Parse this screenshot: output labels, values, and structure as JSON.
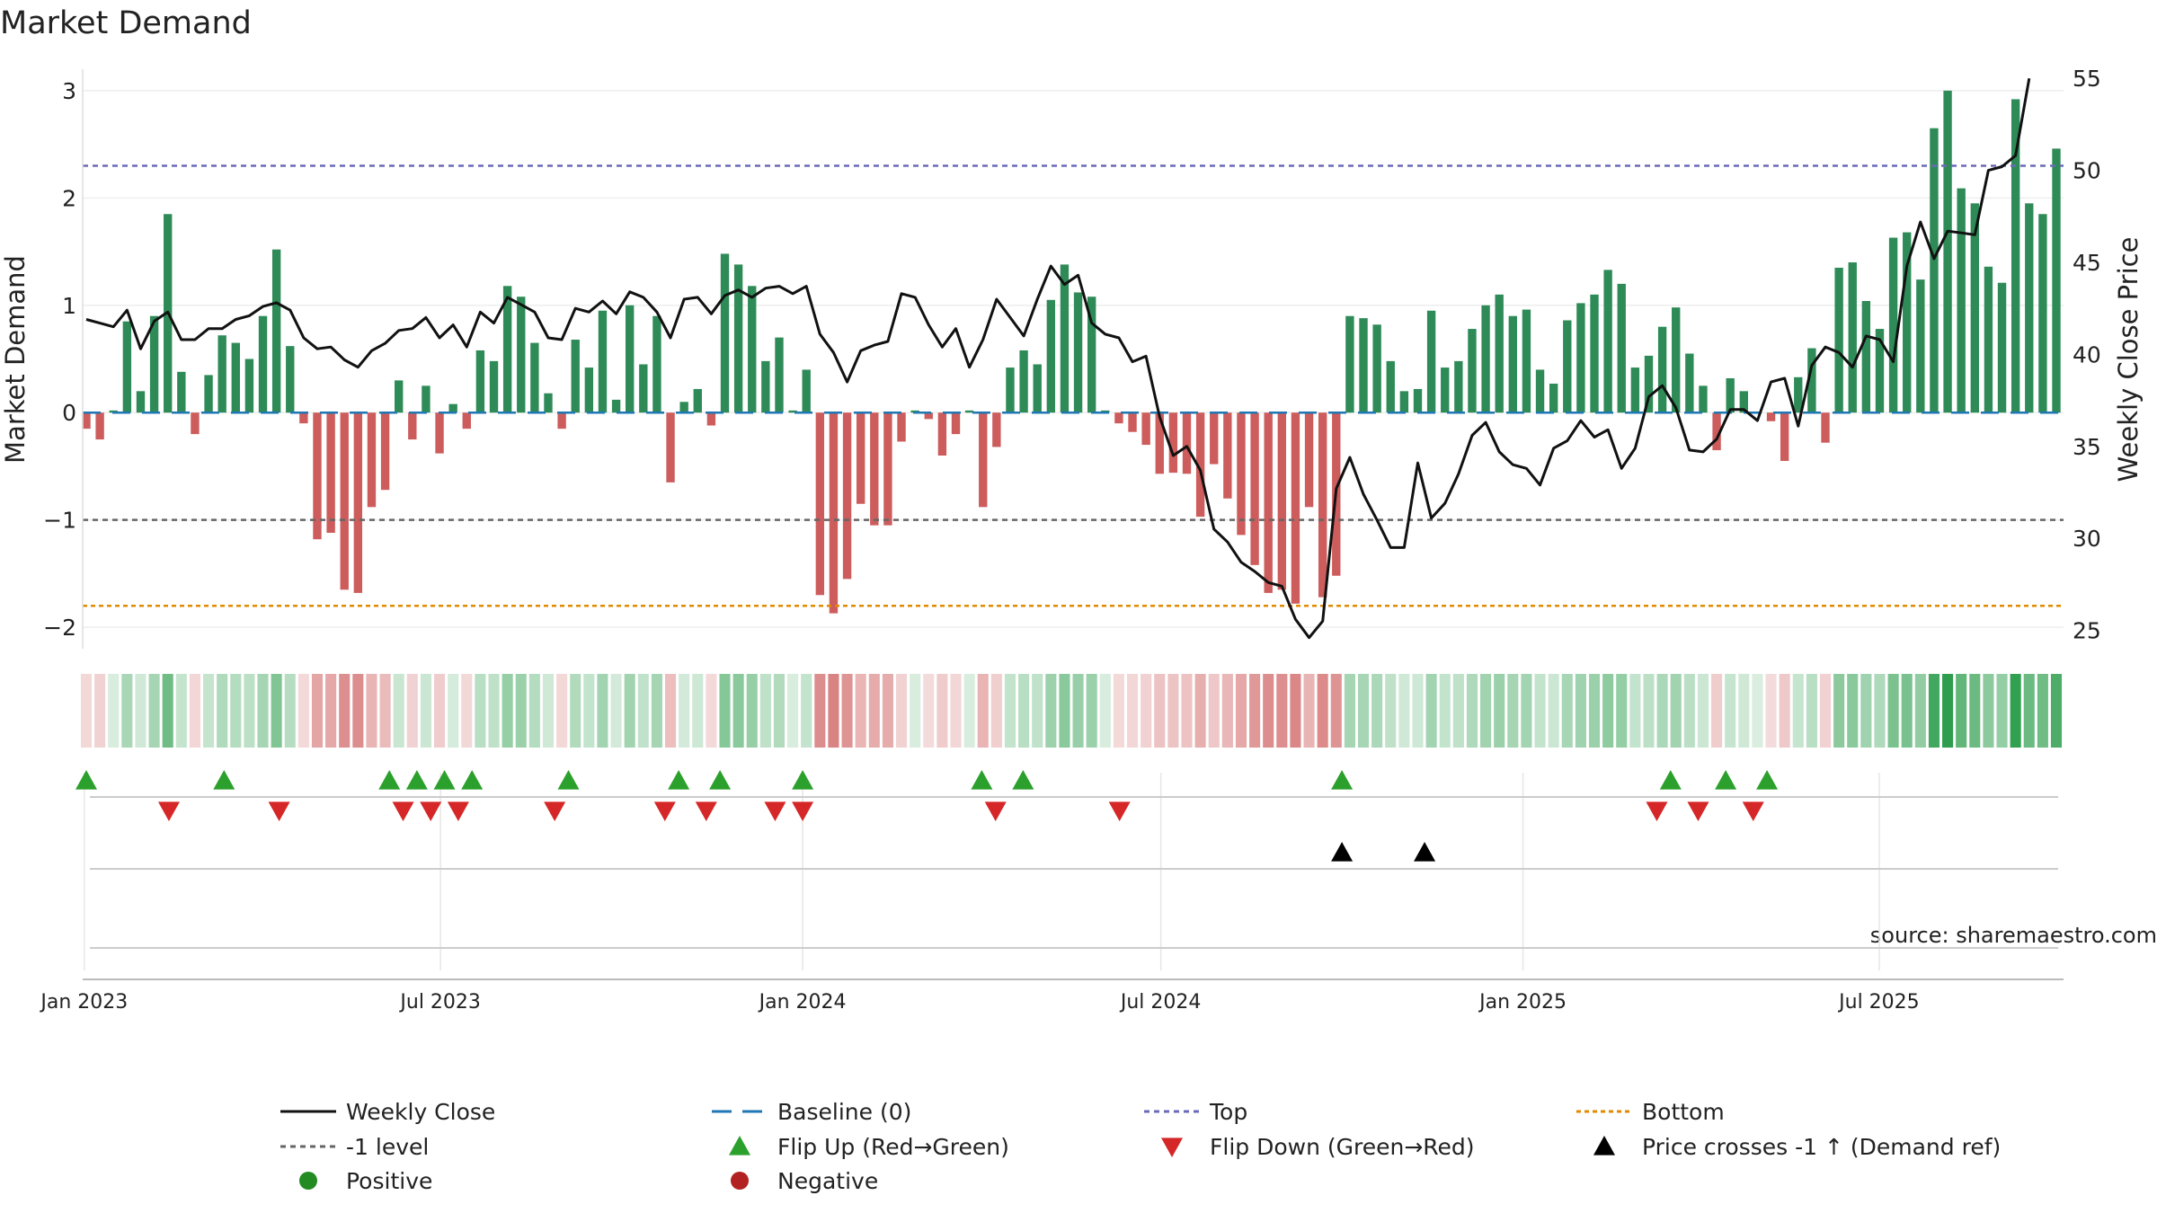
{
  "chart_data": {
    "type": "bar",
    "title": "Market Demand",
    "ylabel_left": "Market Demand",
    "ylabel_right": "Weekly Close Price",
    "source": "source: sharemaestro.com",
    "x_start": "2023-01-02",
    "x_end": "2025-09-29",
    "x_ticks": [
      {
        "date": "2023-01-01",
        "label": "Jan 2023"
      },
      {
        "date": "2023-07-01",
        "label": "Jul 2023"
      },
      {
        "date": "2024-01-01",
        "label": "Jan 2024"
      },
      {
        "date": "2024-07-01",
        "label": "Jul 2024"
      },
      {
        "date": "2025-01-01",
        "label": "Jan 2025"
      },
      {
        "date": "2025-07-01",
        "label": "Jul 2025"
      }
    ],
    "ylim_left": [
      -2.2,
      3.2
    ],
    "yticks_left": [
      -2,
      -1,
      0,
      1,
      2,
      3
    ],
    "ylim_right": [
      24,
      55.5
    ],
    "yticks_right": [
      25,
      30,
      35,
      40,
      45,
      50,
      55
    ],
    "levels": {
      "top": 2.3,
      "minus_one": -1.0,
      "bottom": -1.8
    },
    "demand": [
      -0.15,
      -0.25,
      0.02,
      0.85,
      0.2,
      0.9,
      1.85,
      0.38,
      -0.2,
      0.35,
      0.72,
      0.65,
      0.5,
      0.9,
      1.52,
      0.62,
      -0.1,
      -1.18,
      -1.12,
      -1.65,
      -1.68,
      -0.88,
      -0.72,
      0.3,
      -0.25,
      0.25,
      -0.38,
      0.08,
      -0.15,
      0.58,
      0.48,
      1.18,
      1.08,
      0.65,
      0.18,
      -0.15,
      0.68,
      0.42,
      0.95,
      0.12,
      1.0,
      0.45,
      0.9,
      -0.65,
      0.1,
      0.22,
      -0.12,
      1.48,
      1.38,
      1.18,
      0.48,
      0.7,
      0.02,
      0.4,
      -1.7,
      -1.87,
      -1.55,
      -0.85,
      -1.05,
      -1.05,
      -0.27,
      0.02,
      -0.06,
      -0.4,
      -0.2,
      0.02,
      -0.88,
      -0.32,
      0.42,
      0.58,
      0.45,
      1.05,
      1.38,
      1.12,
      1.08,
      0.02,
      -0.1,
      -0.18,
      -0.3,
      -0.57,
      -0.56,
      -0.57,
      -0.97,
      -0.48,
      -0.8,
      -1.14,
      -1.42,
      -1.68,
      -1.65,
      -1.78,
      -0.88,
      -1.72,
      -1.52,
      0.9,
      0.88,
      0.82,
      0.48,
      0.2,
      0.22,
      0.95,
      0.42,
      0.48,
      0.78,
      1.0,
      1.1,
      0.9,
      0.96,
      0.4,
      0.27,
      0.86,
      1.02,
      1.1,
      1.33,
      1.2,
      0.42,
      0.53,
      0.8,
      0.98,
      0.55,
      0.25,
      -0.35,
      0.32,
      0.2,
      0.0,
      -0.08,
      -0.45,
      0.33,
      0.6,
      -0.28,
      1.35,
      1.4,
      1.04,
      0.78,
      1.63,
      1.68,
      1.24,
      2.65,
      3.0,
      2.09,
      1.95,
      1.36,
      1.21,
      2.92,
      1.95,
      1.85,
      2.46
    ],
    "weekly_close": [
      41.9,
      41.7,
      41.5,
      42.4,
      40.3,
      41.8,
      42.3,
      40.8,
      40.8,
      41.4,
      41.4,
      41.9,
      42.1,
      42.6,
      42.8,
      42.4,
      40.9,
      40.3,
      40.4,
      39.7,
      39.3,
      40.2,
      40.6,
      41.3,
      41.4,
      42.0,
      40.9,
      41.6,
      40.4,
      42.3,
      41.7,
      43.1,
      42.7,
      42.3,
      40.9,
      40.8,
      42.5,
      42.3,
      42.9,
      42.2,
      43.4,
      43.1,
      42.3,
      40.9,
      43.0,
      43.1,
      42.2,
      43.2,
      43.5,
      43.1,
      43.6,
      43.7,
      43.3,
      43.7,
      41.1,
      40.1,
      38.5,
      40.2,
      40.5,
      40.7,
      43.3,
      43.1,
      41.6,
      40.4,
      41.4,
      39.3,
      40.8,
      43.0,
      42.0,
      41.0,
      43.0,
      44.8,
      43.8,
      44.3,
      41.7,
      41.1,
      40.9,
      39.6,
      39.9,
      36.6,
      34.5,
      35.0,
      33.7,
      30.5,
      29.8,
      28.7,
      28.2,
      27.6,
      27.4,
      25.6,
      24.6,
      25.5,
      32.7,
      34.4,
      32.4,
      31.0,
      29.5,
      29.5,
      34.1,
      31.1,
      31.9,
      33.5,
      35.6,
      36.3,
      34.7,
      34.0,
      33.8,
      32.9,
      34.9,
      35.3,
      36.4,
      35.5,
      35.9,
      33.8,
      34.9,
      37.7,
      38.3,
      37.1,
      34.8,
      34.7,
      35.4,
      37.0,
      37.0,
      36.4,
      38.5,
      38.7,
      36.1,
      39.4,
      40.4,
      40.1,
      39.3,
      41.0,
      40.8,
      39.6,
      44.8,
      47.2,
      45.2,
      46.7,
      46.6,
      46.5,
      50.0,
      50.2,
      50.8,
      55.0
    ],
    "flip_up": [
      "2023-01-02",
      "2023-03-13",
      "2023-06-05",
      "2023-06-19",
      "2023-07-03",
      "2023-07-17",
      "2023-09-04",
      "2023-10-30",
      "2023-11-20",
      "2024-01-01",
      "2024-04-01",
      "2024-04-22",
      "2024-10-01",
      "2025-03-17",
      "2025-04-14",
      "2025-05-05"
    ],
    "flip_down": [
      "2023-02-13",
      "2023-04-10",
      "2023-06-12",
      "2023-06-26",
      "2023-07-10",
      "2023-08-28",
      "2023-10-23",
      "2023-11-13",
      "2023-12-18",
      "2024-01-01",
      "2024-04-08",
      "2024-06-10",
      "2025-03-10",
      "2025-03-31",
      "2025-04-28"
    ],
    "price_cross_up": [
      "2024-10-01",
      "2024-11-12"
    ],
    "legend": [
      {
        "label": "Weekly Close",
        "kind": "line",
        "color": "#111111",
        "dash": ""
      },
      {
        "label": "Baseline (0)",
        "kind": "line",
        "color": "#1f77b4",
        "dash": "22 12"
      },
      {
        "label": "Top",
        "kind": "line",
        "color": "#6a6ab8",
        "dash": "6 5"
      },
      {
        "label": "Bottom",
        "kind": "line",
        "color": "#e08a00",
        "dash": "5 4"
      },
      {
        "label": "-1 level",
        "kind": "line",
        "color": "#666666",
        "dash": "6 5"
      },
      {
        "label": "Flip Up (Red→Green)",
        "kind": "tri-up",
        "color": "#2ca02c",
        "dash": ""
      },
      {
        "label": "Flip Down (Green→Red)",
        "kind": "tri-down",
        "color": "#d62728",
        "dash": ""
      },
      {
        "label": "Price crosses -1 ↑ (Demand ref)",
        "kind": "tri-up",
        "color": "#000000",
        "dash": ""
      },
      {
        "label": "Positive",
        "kind": "dot",
        "color": "#228b22",
        "dash": ""
      },
      {
        "label": "Negative",
        "kind": "dot",
        "color": "#b22222",
        "dash": ""
      }
    ],
    "colors": {
      "positive": "#2e8b57",
      "negative": "#cd5c5c",
      "price": "#111111",
      "baseline": "#1f77b4"
    }
  }
}
